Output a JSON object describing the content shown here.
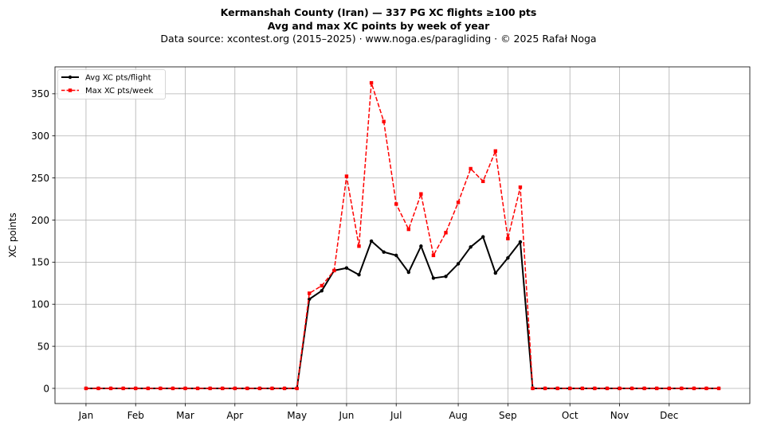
{
  "header": {
    "title_line1": "Kermanshah County (Iran)  —  337 PG XC flights ≥100 pts",
    "title_line2": "Avg and max XC points by week of year",
    "subtitle": "Data source: xcontest.org (2015–2025)  ·  www.noga.es/paragliding  ·  © 2025 Rafał Noga"
  },
  "chart_data": {
    "type": "line",
    "title": "Kermanshah County (Iran)  —  337 PG XC flights ≥100 pts",
    "subtitle": "Avg and max XC points by week of year",
    "xlabel": "",
    "ylabel": "XC points",
    "xlim": [
      -2.5,
      53.5
    ],
    "ylim": [
      -18,
      382
    ],
    "x_ticks": [
      {
        "x": 0,
        "label": "Jan"
      },
      {
        "x": 4,
        "label": "Feb"
      },
      {
        "x": 8,
        "label": "Mar"
      },
      {
        "x": 12,
        "label": "Apr"
      },
      {
        "x": 17,
        "label": "May"
      },
      {
        "x": 21,
        "label": "Jun"
      },
      {
        "x": 25,
        "label": "Jul"
      },
      {
        "x": 30,
        "label": "Aug"
      },
      {
        "x": 34,
        "label": "Sep"
      },
      {
        "x": 39,
        "label": "Oct"
      },
      {
        "x": 43,
        "label": "Nov"
      },
      {
        "x": 47,
        "label": "Dec"
      }
    ],
    "y_ticks": [
      0,
      50,
      100,
      150,
      200,
      250,
      300,
      350
    ],
    "grid": true,
    "legend_position": "top-left",
    "x": [
      0,
      1,
      2,
      3,
      4,
      5,
      6,
      7,
      8,
      9,
      10,
      11,
      12,
      13,
      14,
      15,
      16,
      17,
      18,
      19,
      20,
      21,
      22,
      23,
      24,
      25,
      26,
      27,
      28,
      29,
      30,
      31,
      32,
      33,
      34,
      35,
      36,
      37,
      38,
      39,
      40,
      41,
      42,
      43,
      44,
      45,
      46,
      47,
      48,
      49,
      50,
      51
    ],
    "series": [
      {
        "name": "Avg XC pts/flight",
        "color": "#000000",
        "style": "solid",
        "marker": "circle",
        "values": [
          0,
          0,
          0,
          0,
          0,
          0,
          0,
          0,
          0,
          0,
          0,
          0,
          0,
          0,
          0,
          0,
          0,
          0,
          106,
          116,
          140,
          143,
          135,
          175,
          162,
          158,
          138,
          169,
          131,
          133,
          148,
          168,
          180,
          137,
          155,
          174,
          0,
          0,
          0,
          0,
          0,
          0,
          0,
          0,
          0,
          0,
          0,
          0,
          0,
          0,
          0,
          0
        ]
      },
      {
        "name": "Max XC pts/week",
        "color": "#ff0000",
        "style": "dashed",
        "marker": "square",
        "values": [
          0,
          0,
          0,
          0,
          0,
          0,
          0,
          0,
          0,
          0,
          0,
          0,
          0,
          0,
          0,
          0,
          0,
          0,
          113,
          122,
          140,
          252,
          169,
          363,
          317,
          219,
          189,
          231,
          158,
          185,
          221,
          261,
          246,
          282,
          178,
          239,
          0,
          0,
          0,
          0,
          0,
          0,
          0,
          0,
          0,
          0,
          0,
          0,
          0,
          0,
          0,
          0
        ]
      }
    ]
  }
}
